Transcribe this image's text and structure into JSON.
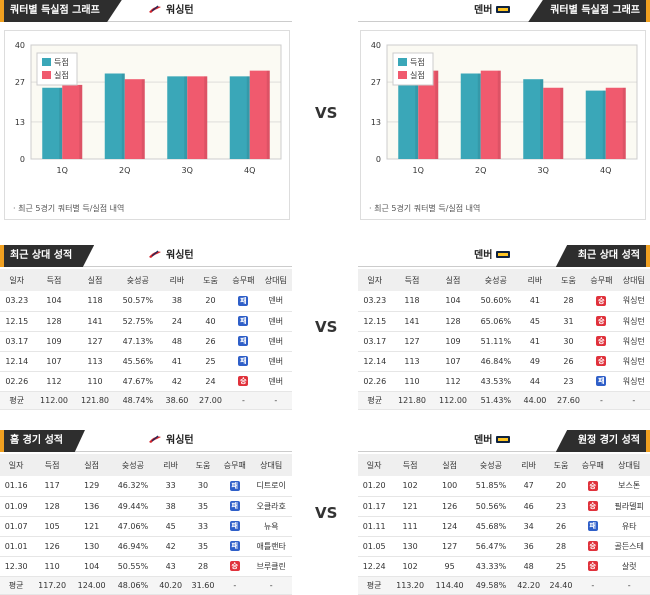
{
  "common": {
    "vs": "VS",
    "home_team": "워싱턴",
    "away_team": "덴버"
  },
  "charts": {
    "title": "쿼터별 득실점 그래프",
    "note": "최근 5경기 쿼터별 득/실점 내역",
    "legend": [
      "득점",
      "실점"
    ],
    "colors": {
      "score": "#3aa7b8",
      "allow": "#f05a6e"
    }
  },
  "chart_data": [
    {
      "type": "bar",
      "title": "쿼터별 득실점 그래프",
      "team": "워싱턴",
      "categories": [
        "1Q",
        "2Q",
        "3Q",
        "4Q"
      ],
      "series": [
        {
          "name": "득점",
          "values": [
            25,
            30,
            29,
            29
          ]
        },
        {
          "name": "실점",
          "values": [
            26,
            28,
            29,
            31
          ]
        }
      ],
      "yticks": [
        0,
        13,
        27,
        40
      ],
      "ylim": [
        0,
        40
      ],
      "legend_position": "top-left"
    },
    {
      "type": "bar",
      "title": "쿼터별 득실점 그래프",
      "team": "덴버",
      "categories": [
        "1Q",
        "2Q",
        "3Q",
        "4Q"
      ],
      "series": [
        {
          "name": "득점",
          "values": [
            33,
            30,
            28,
            24
          ]
        },
        {
          "name": "실점",
          "values": [
            31,
            31,
            25,
            25
          ]
        }
      ],
      "yticks": [
        0,
        13,
        27,
        40
      ],
      "ylim": [
        0,
        40
      ],
      "legend_position": "top-left"
    }
  ],
  "columns": [
    "일자",
    "득점",
    "실점",
    "슛성공",
    "리바",
    "도움",
    "승무패",
    "상대팀"
  ],
  "sections": [
    {
      "left": {
        "title": "최근 상대 성적",
        "team": "워싱턴",
        "rows": [
          [
            "03.23",
            "104",
            "118",
            "50.57%",
            "38",
            "20",
            "패",
            "덴버"
          ],
          [
            "12.15",
            "128",
            "141",
            "52.75%",
            "24",
            "40",
            "패",
            "덴버"
          ],
          [
            "03.17",
            "109",
            "127",
            "47.13%",
            "48",
            "26",
            "패",
            "덴버"
          ],
          [
            "12.14",
            "107",
            "113",
            "45.56%",
            "41",
            "25",
            "패",
            "덴버"
          ],
          [
            "02.26",
            "112",
            "110",
            "47.67%",
            "42",
            "24",
            "승",
            "덴버"
          ]
        ],
        "avg": [
          "평균",
          "112.00",
          "121.80",
          "48.74%",
          "38.60",
          "27.00",
          "-",
          "-"
        ]
      },
      "right": {
        "title": "최근 상대 성적",
        "team": "덴버",
        "rows": [
          [
            "03.23",
            "118",
            "104",
            "50.60%",
            "41",
            "28",
            "승",
            "워싱턴"
          ],
          [
            "12.15",
            "141",
            "128",
            "65.06%",
            "45",
            "31",
            "승",
            "워싱턴"
          ],
          [
            "03.17",
            "127",
            "109",
            "51.11%",
            "41",
            "30",
            "승",
            "워싱턴"
          ],
          [
            "12.14",
            "113",
            "107",
            "46.84%",
            "49",
            "26",
            "승",
            "워싱턴"
          ],
          [
            "02.26",
            "110",
            "112",
            "43.53%",
            "44",
            "23",
            "패",
            "워싱턴"
          ]
        ],
        "avg": [
          "평균",
          "121.80",
          "112.00",
          "51.43%",
          "44.00",
          "27.60",
          "-",
          "-"
        ]
      }
    },
    {
      "left": {
        "title": "홈 경기 성적",
        "team": "워싱턴",
        "rows": [
          [
            "01.16",
            "117",
            "129",
            "46.32%",
            "33",
            "30",
            "패",
            "디트로이"
          ],
          [
            "01.09",
            "128",
            "136",
            "49.44%",
            "38",
            "35",
            "패",
            "오클라호"
          ],
          [
            "01.07",
            "105",
            "121",
            "47.06%",
            "45",
            "33",
            "패",
            "뉴욕"
          ],
          [
            "01.01",
            "126",
            "130",
            "46.94%",
            "42",
            "35",
            "패",
            "애틀랜타"
          ],
          [
            "12.30",
            "110",
            "104",
            "50.55%",
            "43",
            "28",
            "승",
            "브루클린"
          ]
        ],
        "avg": [
          "평균",
          "117.20",
          "124.00",
          "48.06%",
          "40.20",
          "31.60",
          "-",
          "-"
        ]
      },
      "right": {
        "title": "원정 경기 성적",
        "team": "덴버",
        "rows": [
          [
            "01.20",
            "102",
            "100",
            "51.85%",
            "47",
            "20",
            "승",
            "보스톤"
          ],
          [
            "01.17",
            "121",
            "126",
            "50.56%",
            "46",
            "23",
            "승",
            "필라델피"
          ],
          [
            "01.11",
            "111",
            "124",
            "45.68%",
            "34",
            "26",
            "패",
            "유타"
          ],
          [
            "01.05",
            "130",
            "127",
            "56.47%",
            "36",
            "28",
            "승",
            "골든스테"
          ],
          [
            "12.24",
            "102",
            "95",
            "43.33%",
            "48",
            "25",
            "승",
            "살럿"
          ]
        ],
        "avg": [
          "평균",
          "113.20",
          "114.40",
          "49.58%",
          "42.20",
          "24.40",
          "-",
          "-"
        ]
      }
    }
  ]
}
